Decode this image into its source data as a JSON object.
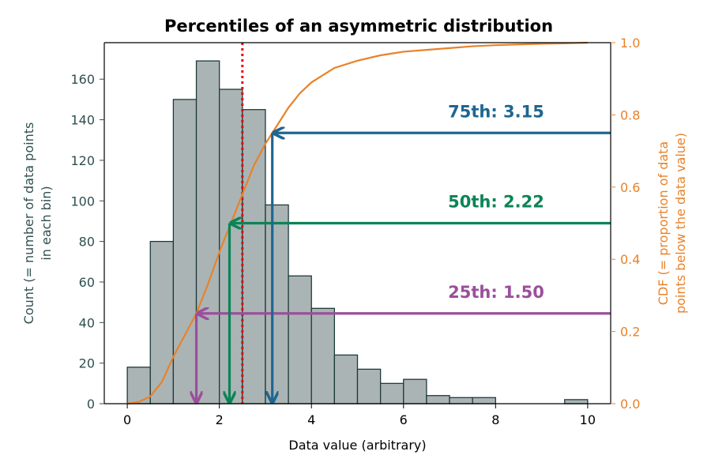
{
  "chart_data": {
    "type": "bar",
    "title": "Percentiles of an asymmetric distribution",
    "xlabel": "Data value (arbitrary)",
    "ylabel_left": [
      "Count (= number of data points",
      "in each bin)"
    ],
    "ylabel_right": [
      "CDF (= proportion of data",
      "points below the data value)"
    ],
    "xlim": [
      -0.5,
      10.5
    ],
    "ylim_left": [
      0,
      178
    ],
    "ylim_right": [
      0,
      1.0
    ],
    "x_ticks": [
      0,
      2,
      4,
      6,
      8,
      10
    ],
    "y_left_ticks": [
      0,
      20,
      40,
      60,
      80,
      100,
      120,
      140,
      160
    ],
    "y_right_ticks": [
      "0.0",
      "0.2",
      "0.4",
      "0.6",
      "0.8",
      "1.0"
    ],
    "histogram": {
      "name": "Count",
      "bin_edges": [
        0,
        0.5,
        1.0,
        1.5,
        2.0,
        2.5,
        3.0,
        3.5,
        4.0,
        4.5,
        5.0,
        5.5,
        6.0,
        6.5,
        7.0,
        7.5,
        8.0,
        8.5,
        9.0,
        9.5,
        10.0
      ],
      "counts": [
        18,
        80,
        150,
        169,
        155,
        145,
        98,
        63,
        47,
        24,
        17,
        10,
        12,
        4,
        3,
        3,
        0,
        0,
        0,
        2
      ]
    },
    "cdf": {
      "name": "CDF",
      "x": [
        0,
        0.25,
        0.5,
        0.75,
        1.0,
        1.25,
        1.5,
        1.75,
        2.0,
        2.25,
        2.5,
        2.75,
        3.0,
        3.25,
        3.5,
        3.75,
        4.0,
        4.5,
        5.0,
        5.5,
        6.0,
        6.5,
        7.0,
        7.5,
        8.0,
        8.5,
        9.0,
        9.5,
        10.0
      ],
      "y": [
        0,
        0.005,
        0.02,
        0.06,
        0.13,
        0.19,
        0.25,
        0.33,
        0.42,
        0.5,
        0.58,
        0.66,
        0.72,
        0.77,
        0.82,
        0.86,
        0.89,
        0.93,
        0.95,
        0.965,
        0.975,
        0.98,
        0.985,
        0.99,
        0.993,
        0.995,
        0.997,
        0.998,
        1.0
      ]
    },
    "mean_line": {
      "x": 2.5,
      "color": "#ee0000"
    },
    "percentiles": [
      {
        "label": "25th: 1.50",
        "value": 1.5,
        "cdf": 0.25,
        "color": "#9b4f9b"
      },
      {
        "label": "50th: 2.22",
        "value": 2.22,
        "cdf": 0.5,
        "color": "#0b8457"
      },
      {
        "label": "75th: 3.15",
        "value": 3.15,
        "cdf": 0.75,
        "color": "#1e6691"
      }
    ],
    "colors": {
      "bar_fill": "#abb4b5",
      "bar_edge": "#1e3b3a",
      "left_axis": "#2f4f4f",
      "right_axis": "#e8822a",
      "cdf_line": "#e8822a"
    }
  }
}
